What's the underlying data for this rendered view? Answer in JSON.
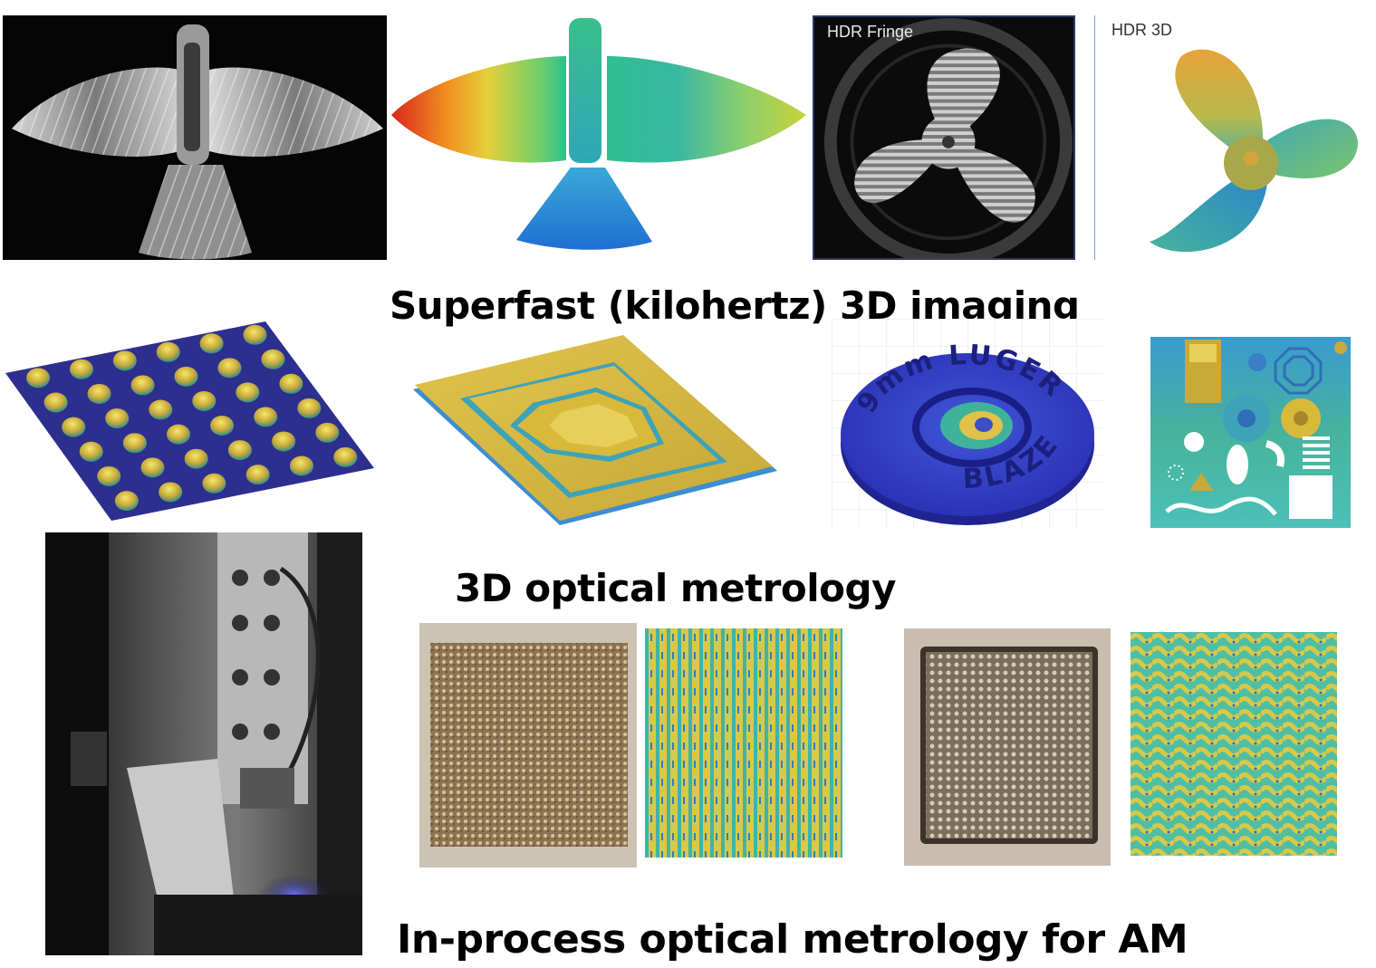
{
  "captions": {
    "row1": "Superfast (kilohertz) 3D imaging",
    "row2": "3D optical metrology",
    "row3": "In-process optical metrology for AM"
  },
  "panel_labels": {
    "hdr_fringe": "HDR Fringe",
    "hdr_3d": "HDR 3D"
  },
  "engraved_text": {
    "coin_top": "9mm LUGER",
    "coin_bottom": "BLAZER"
  },
  "colors": {
    "jet_red": "#d9261c",
    "jet_yellow": "#e6cf3a",
    "jet_green": "#2fbf8f",
    "jet_blue": "#1f6fd1",
    "parula_yellow": "#d8b93a",
    "parula_teal": "#3fb4a8",
    "parula_navy": "#2d2f8f",
    "bronze": "#b79a6a"
  }
}
